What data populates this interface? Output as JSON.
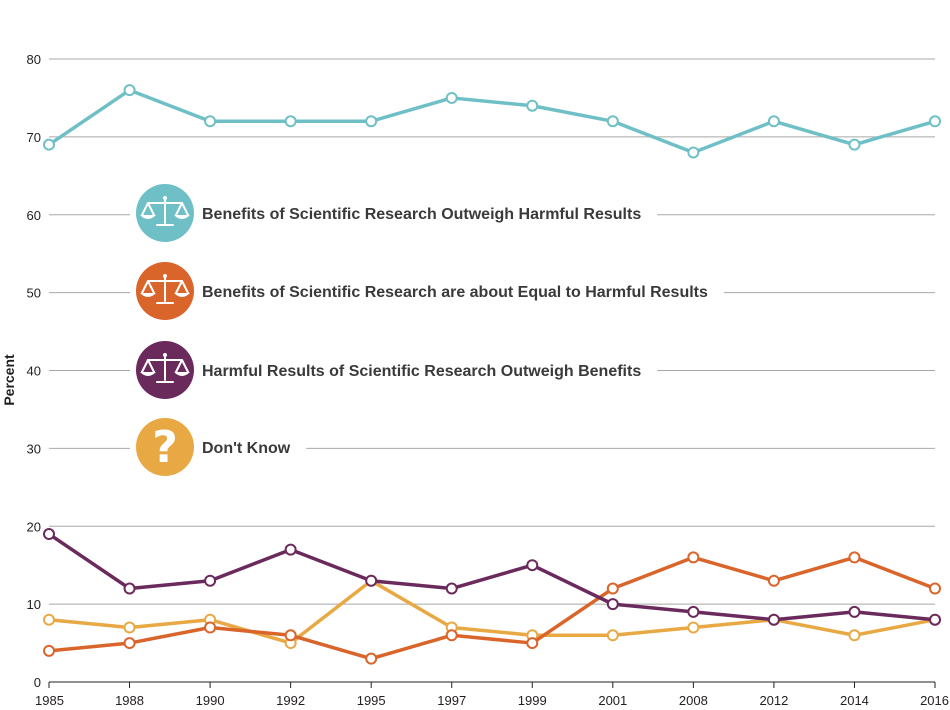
{
  "chart_data": {
    "type": "line",
    "ylabel": "Percent",
    "xlabel": "",
    "ylim": [
      0,
      80
    ],
    "yticks": [
      0,
      10,
      20,
      30,
      40,
      50,
      60,
      70,
      80
    ],
    "grid": "horizontal",
    "categories": [
      "1985",
      "1988",
      "1990",
      "1992",
      "1995",
      "1997",
      "1999",
      "2001",
      "2008",
      "2012",
      "2014",
      "2016"
    ],
    "series": [
      {
        "name": "Benefits of Scientific Research Outweigh Harmful Results",
        "color": "#6fc0c6",
        "icon": "scales-icon",
        "values": [
          69,
          76,
          72,
          72,
          72,
          75,
          74,
          72,
          68,
          72,
          69,
          72
        ]
      },
      {
        "name": "Benefits of Scientific Research are about Equal to Harmful Results",
        "color": "#d9652b",
        "icon": "scales-icon",
        "values": [
          4,
          5,
          7,
          6,
          3,
          6,
          5,
          12,
          16,
          13,
          16,
          12
        ]
      },
      {
        "name": "Harmful Results of Scientific Research Outweigh Benefits",
        "color": "#6b2a5c",
        "icon": "scales-icon",
        "values": [
          19,
          12,
          13,
          17,
          13,
          12,
          15,
          10,
          9,
          8,
          9,
          8
        ]
      },
      {
        "name": "Don't Know",
        "color": "#e8a944",
        "icon": "question-mark-icon",
        "values": [
          8,
          7,
          8,
          5,
          13,
          7,
          6,
          6,
          7,
          8,
          6,
          8
        ]
      }
    ],
    "legend": "inside-center-left"
  }
}
